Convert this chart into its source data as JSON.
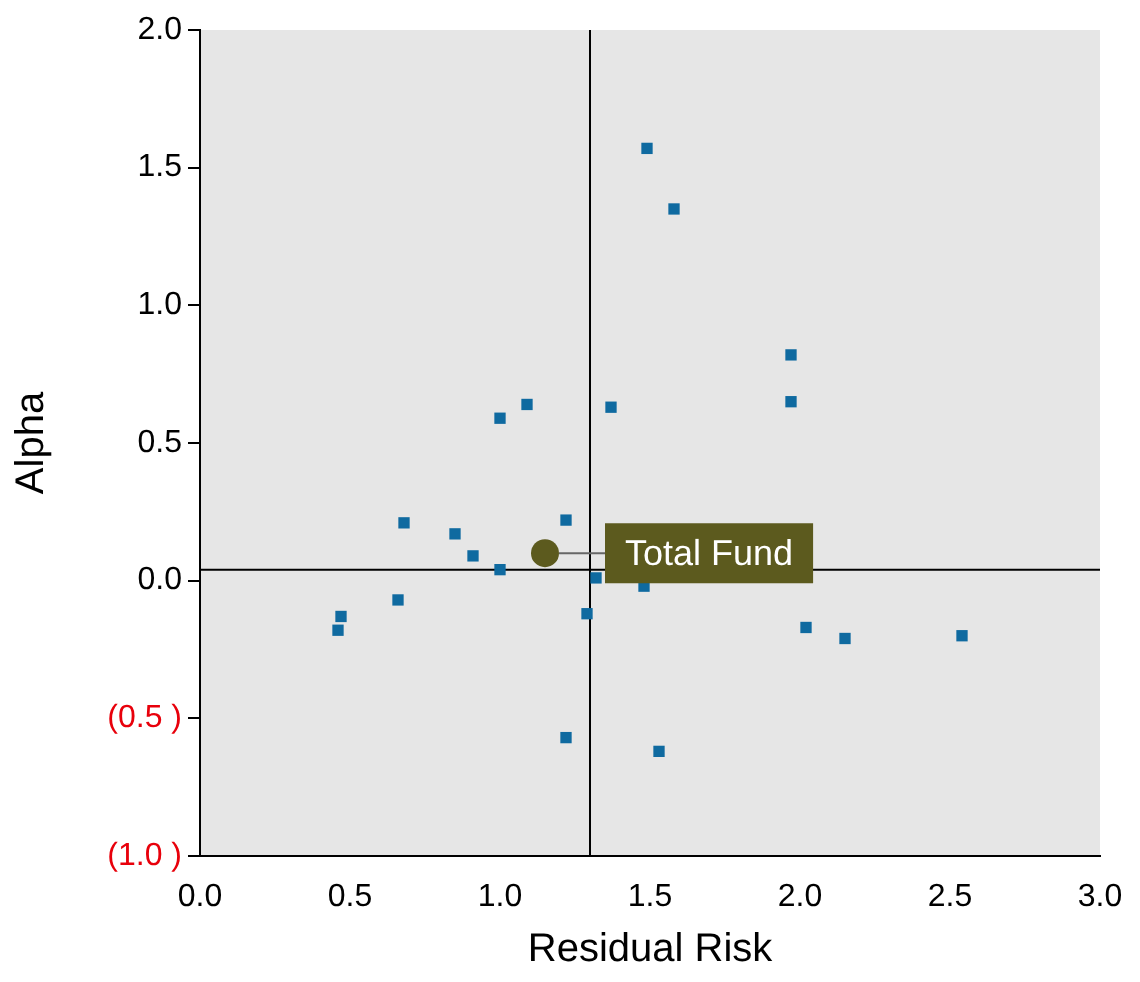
{
  "chart_data": {
    "type": "scatter",
    "xlabel": "Residual Risk",
    "ylabel": "Alpha",
    "xlim": [
      0,
      3
    ],
    "xticks": [
      {
        "value": 0,
        "label": "0.0"
      },
      {
        "value": 0.5,
        "label": "0.5"
      },
      {
        "value": 1,
        "label": "1.0"
      },
      {
        "value": 1.5,
        "label": "1.5"
      },
      {
        "value": 2,
        "label": "2.0"
      },
      {
        "value": 2.5,
        "label": "2.5"
      },
      {
        "value": 3,
        "label": "3.0"
      }
    ],
    "ylim": [
      -1,
      2
    ],
    "yticks": [
      {
        "value": -1,
        "label": "(1.0 )"
      },
      {
        "value": -0.5,
        "label": "(0.5 )"
      },
      {
        "value": 0,
        "label": "0.0"
      },
      {
        "value": 0.5,
        "label": "0.5"
      },
      {
        "value": 1,
        "label": "1.0"
      },
      {
        "value": 1.5,
        "label": "1.5"
      },
      {
        "value": 2,
        "label": "2.0"
      }
    ],
    "grid": false,
    "legend": false,
    "ref_lines": [
      {
        "axis": "x",
        "value": 1.3,
        "color": "#000000"
      },
      {
        "axis": "y",
        "value": 0.04,
        "color": "#000000"
      }
    ],
    "series": [
      {
        "color": "#0f6aa0",
        "marker": "square",
        "x": [
          1.49,
          1.58,
          1.97,
          1.97,
          1.09,
          1.37,
          1.0,
          1.22,
          0.68,
          0.85,
          0.91,
          1.0,
          1.32,
          1.48,
          0.66,
          0.47,
          0.46,
          1.29,
          2.02,
          2.15,
          2.54,
          1.22,
          1.53
        ],
        "values": [
          1.57,
          1.35,
          0.82,
          0.65,
          0.64,
          0.63,
          0.59,
          0.22,
          0.21,
          0.17,
          0.09,
          0.04,
          0.01,
          -0.02,
          -0.07,
          -0.13,
          -0.18,
          -0.12,
          -0.17,
          -0.21,
          -0.2,
          -0.57,
          -0.62
        ]
      },
      {
        "name": "Total Fund",
        "color": "#5c5a1e",
        "marker": "circle",
        "x": [
          1.15
        ],
        "values": [
          0.1
        ]
      }
    ]
  }
}
